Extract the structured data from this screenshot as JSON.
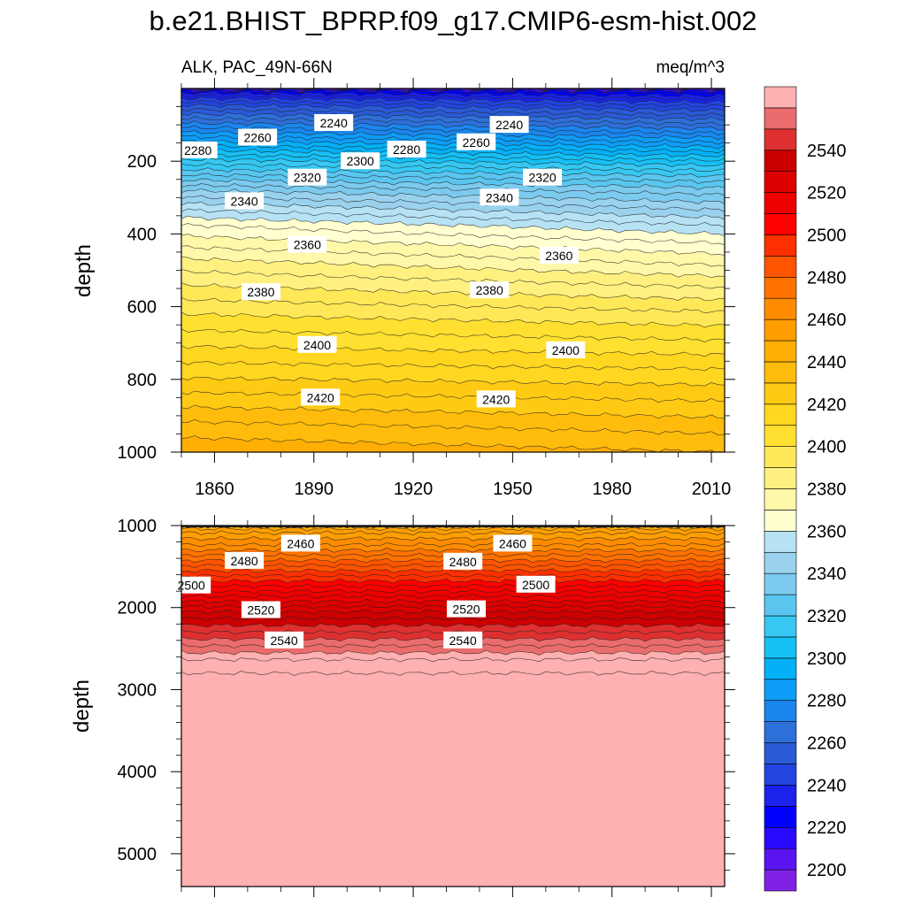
{
  "title": "b.e21.BHIST_BPRP.f09_g17.CMIP6-esm-hist.002",
  "subtitle_left": "ALK, PAC_49N-66N",
  "subtitle_right": "meq/m^3",
  "chart_data": [
    {
      "type": "heatmap",
      "panel": "upper",
      "variable": "ALK",
      "region": "PAC_49N-66N",
      "units": "meq/m^3",
      "xlabel": "",
      "ylabel": "depth",
      "xlim": [
        1850,
        2014
      ],
      "ylim": [
        1000,
        0
      ],
      "x_ticks": [
        1860,
        1890,
        1920,
        1950,
        1980,
        2010
      ],
      "y_ticks": [
        200,
        400,
        600,
        800,
        1000
      ],
      "profile": {
        "depth": [
          0,
          10,
          30,
          50,
          70,
          90,
          110,
          130,
          150,
          170,
          200,
          240,
          280,
          330,
          380,
          430,
          480,
          540,
          620,
          700,
          780,
          860,
          940,
          1000
        ],
        "value_1850": [
          2200,
          2218,
          2232,
          2242,
          2250,
          2258,
          2266,
          2274,
          2282,
          2290,
          2302,
          2316,
          2330,
          2344,
          2356,
          2364,
          2372,
          2380,
          2390,
          2399,
          2408,
          2418,
          2428,
          2434
        ],
        "value_2014": [
          2200,
          2214,
          2226,
          2236,
          2244,
          2252,
          2260,
          2268,
          2276,
          2284,
          2296,
          2310,
          2322,
          2334,
          2346,
          2356,
          2364,
          2374,
          2386,
          2396,
          2406,
          2415,
          2424,
          2430
        ]
      },
      "contour_labels": [
        {
          "text": "2240",
          "year": 1896,
          "depth": 95
        },
        {
          "text": "2240",
          "year": 1949,
          "depth": 100
        },
        {
          "text": "2260",
          "year": 1873,
          "depth": 135
        },
        {
          "text": "2260",
          "year": 1939,
          "depth": 148
        },
        {
          "text": "2280",
          "year": 1855,
          "depth": 170
        },
        {
          "text": "2280",
          "year": 1918,
          "depth": 168
        },
        {
          "text": "2300",
          "year": 1904,
          "depth": 200
        },
        {
          "text": "2320",
          "year": 1888,
          "depth": 245
        },
        {
          "text": "2320",
          "year": 1959,
          "depth": 245
        },
        {
          "text": "2340",
          "year": 1869,
          "depth": 310
        },
        {
          "text": "2340",
          "year": 1946,
          "depth": 300
        },
        {
          "text": "2360",
          "year": 1888,
          "depth": 430
        },
        {
          "text": "2360",
          "year": 1964,
          "depth": 460
        },
        {
          "text": "2380",
          "year": 1874,
          "depth": 560
        },
        {
          "text": "2380",
          "year": 1943,
          "depth": 555
        },
        {
          "text": "2400",
          "year": 1891,
          "depth": 705
        },
        {
          "text": "2400",
          "year": 1966,
          "depth": 720
        },
        {
          "text": "2420",
          "year": 1892,
          "depth": 850
        },
        {
          "text": "2420",
          "year": 1945,
          "depth": 855
        }
      ]
    },
    {
      "type": "heatmap",
      "panel": "lower",
      "variable": "ALK",
      "units": "meq/m^3",
      "xlabel": "",
      "ylabel": "depth",
      "xlim": [
        1850,
        2014
      ],
      "ylim": [
        5400,
        1000
      ],
      "y_ticks": [
        1000,
        2000,
        3000,
        4000,
        5000
      ],
      "profile": {
        "depth": [
          1000,
          1100,
          1250,
          1450,
          1650,
          1850,
          2050,
          2250,
          2450,
          2650,
          2800,
          5400
        ],
        "value": [
          2436,
          2446,
          2456,
          2472,
          2488,
          2504,
          2520,
          2532,
          2544,
          2556,
          2560,
          2562
        ]
      },
      "contour_labels": [
        {
          "text": "2460",
          "year": 1886,
          "depth": 1220
        },
        {
          "text": "2460",
          "year": 1950,
          "depth": 1220
        },
        {
          "text": "2480",
          "year": 1869,
          "depth": 1430
        },
        {
          "text": "2480",
          "year": 1935,
          "depth": 1440
        },
        {
          "text": "2500",
          "year": 1853,
          "depth": 1730
        },
        {
          "text": "2500",
          "year": 1957,
          "depth": 1720
        },
        {
          "text": "2520",
          "year": 1874,
          "depth": 2030
        },
        {
          "text": "2520",
          "year": 1936,
          "depth": 2020
        },
        {
          "text": "2540",
          "year": 1881,
          "depth": 2400
        },
        {
          "text": "2540",
          "year": 1935,
          "depth": 2400
        }
      ]
    }
  ],
  "colorbar": {
    "labels": [
      "2200",
      "2220",
      "2240",
      "2260",
      "2280",
      "2300",
      "2320",
      "2340",
      "2360",
      "2380",
      "2400",
      "2420",
      "2440",
      "2460",
      "2480",
      "2500",
      "2520",
      "2540"
    ],
    "levels": [
      2195,
      2200,
      2205,
      2210,
      2215,
      2220,
      2225,
      2230,
      2235,
      2240,
      2245,
      2250,
      2255,
      2260,
      2265,
      2270,
      2275,
      2280,
      2285,
      2290,
      2295,
      2300,
      2305,
      2310,
      2315,
      2320,
      2325,
      2330,
      2335,
      2340,
      2345,
      2350,
      2355,
      2360,
      2365,
      2370,
      2375,
      2380,
      2385,
      2390,
      2395,
      2400,
      2405,
      2410,
      2415,
      2420,
      2425,
      2430,
      2435,
      2440,
      2445,
      2450,
      2455,
      2460,
      2465,
      2470,
      2475,
      2480,
      2485,
      2490,
      2495,
      2500,
      2505,
      2510,
      2515,
      2520,
      2525,
      2530,
      2535,
      2540,
      2545,
      2550,
      2555,
      2560
    ],
    "colors": [
      "#8022e6",
      "#5a14ef",
      "#2a0aff",
      "#0000ff",
      "#1a22ec",
      "#2244e0",
      "#2a5ad6",
      "#2e70da",
      "#1a86ee",
      "#0e9cf6",
      "#04b0f6",
      "#16c0f4",
      "#36c8f2",
      "#5ac6f0",
      "#7ccaee",
      "#9ad2ee",
      "#b6e2f4",
      "#ffffd0",
      "#fff8a8",
      "#fff080",
      "#ffe858",
      "#ffe030",
      "#ffd620",
      "#ffca14",
      "#ffbc0c",
      "#ffae04",
      "#ff9e00",
      "#ff8c00",
      "#ff7200",
      "#ff5400",
      "#ff3000",
      "#ff0000",
      "#ee0000",
      "#de0000",
      "#cc0000",
      "#de3030",
      "#ea6c6c",
      "#ffb0b0"
    ],
    "color_breaks": [
      2200,
      2205,
      2210,
      2220,
      2230,
      2240,
      2250,
      2260,
      2270,
      2280,
      2290,
      2300,
      2310,
      2320,
      2330,
      2340,
      2350,
      2360,
      2370,
      2380,
      2390,
      2400,
      2410,
      2420,
      2430,
      2440,
      2450,
      2460,
      2470,
      2480,
      2490,
      2500,
      2510,
      2520,
      2530,
      2540,
      2550,
      2560
    ]
  }
}
